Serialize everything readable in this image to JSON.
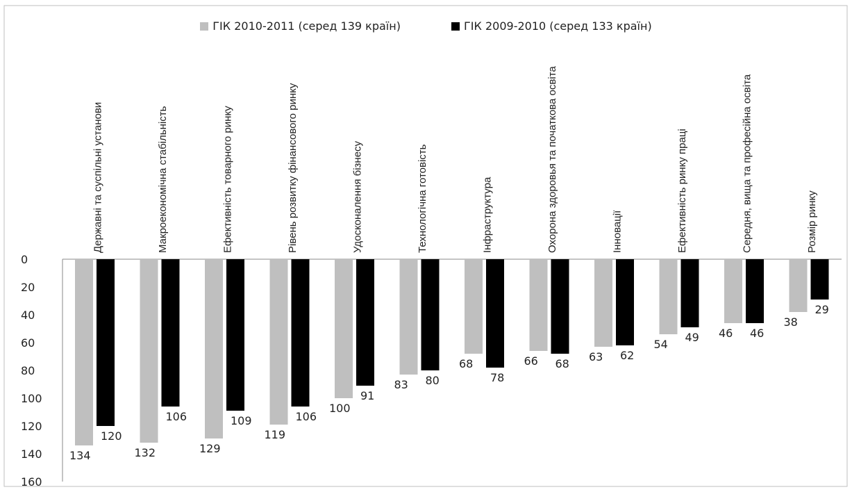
{
  "chart_data": {
    "type": "bar",
    "orientation": "vertical-inverted",
    "categories": [
      "Державні та суспільні установи",
      "Макроекономічна стабільність",
      "Ефективність товарного ринку",
      "Рівень розвитку фінансового ринку",
      "Удосконалення бізнесу",
      "Технологічна готовість",
      "Інфраструктура",
      "Охорона здоровья та початкова освіта",
      "Інновації",
      "Ефективність ринку праці",
      "Середня, вища та професійна освіта",
      "Розмір ринку"
    ],
    "series": [
      {
        "name": "ГІК 2010-2011 (серед 139 країн)",
        "color": "#bfbfbf",
        "values": [
          134,
          132,
          129,
          119,
          100,
          83,
          68,
          66,
          63,
          54,
          46,
          38
        ]
      },
      {
        "name": "ГІК 2009-2010 (серед 133 країн)",
        "color": "#000000",
        "values": [
          120,
          106,
          109,
          106,
          91,
          80,
          78,
          68,
          62,
          49,
          46,
          29
        ]
      }
    ],
    "yticks": [
      0,
      20,
      40,
      60,
      80,
      100,
      120,
      140,
      160
    ],
    "ylim": [
      0,
      160
    ],
    "y_inverted": true,
    "legend_position": "top",
    "grid": false
  }
}
